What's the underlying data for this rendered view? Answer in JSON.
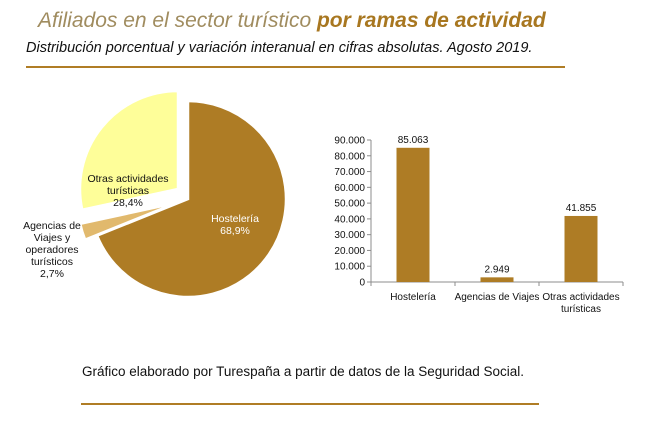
{
  "header": {
    "title_normal": "Afiliados en el sector turístico ",
    "title_bold": "por ramas de actividad",
    "subtitle": "Distribución porcentual y variación interanual en cifras absolutas. Agosto 2019."
  },
  "source_note": "Gráfico elaborado por Turespaña a partir de datos de la Seguridad Social.",
  "colors": {
    "accent": "#b07d25",
    "title_bold": "#a87720",
    "title_normal": "#a08c5f",
    "pie_hosteleria": "#ae7c25",
    "pie_otras": "#fefe99",
    "pie_agencias": "#e1b96d",
    "bar": "#ae7c25",
    "axis": "#8c8c8c"
  },
  "chart_data": [
    {
      "type": "pie",
      "title": "",
      "slices": [
        {
          "label_lines": [
            "Hostelería",
            "68,9%"
          ],
          "value": 68.9
        },
        {
          "label_lines": [
            "Agencias de",
            "Viajes y",
            "operadores",
            "turísticos",
            "2,7%"
          ],
          "value": 2.7
        },
        {
          "label_lines": [
            "Otras actividades",
            "turísticas",
            "28,4%"
          ],
          "value": 28.4
        }
      ]
    },
    {
      "type": "bar",
      "title": "",
      "xlabel": "",
      "ylabel": "",
      "categories": [
        {
          "lines": [
            "Hostelería"
          ]
        },
        {
          "lines": [
            "Agencias de Viajes"
          ]
        },
        {
          "lines": [
            "Otras actividades",
            "turísticas"
          ]
        }
      ],
      "values": [
        85063,
        2949,
        41855
      ],
      "value_labels": [
        "85.063",
        "2.949",
        "41.855"
      ],
      "ylim": [
        0,
        90000
      ],
      "yticks": [
        0,
        10000,
        20000,
        30000,
        40000,
        50000,
        60000,
        70000,
        80000,
        90000
      ],
      "ytick_labels": [
        "0",
        "10.000",
        "20.000",
        "30.000",
        "40.000",
        "50.000",
        "60.000",
        "70.000",
        "80.000",
        "90.000"
      ],
      "grid": false
    }
  ]
}
